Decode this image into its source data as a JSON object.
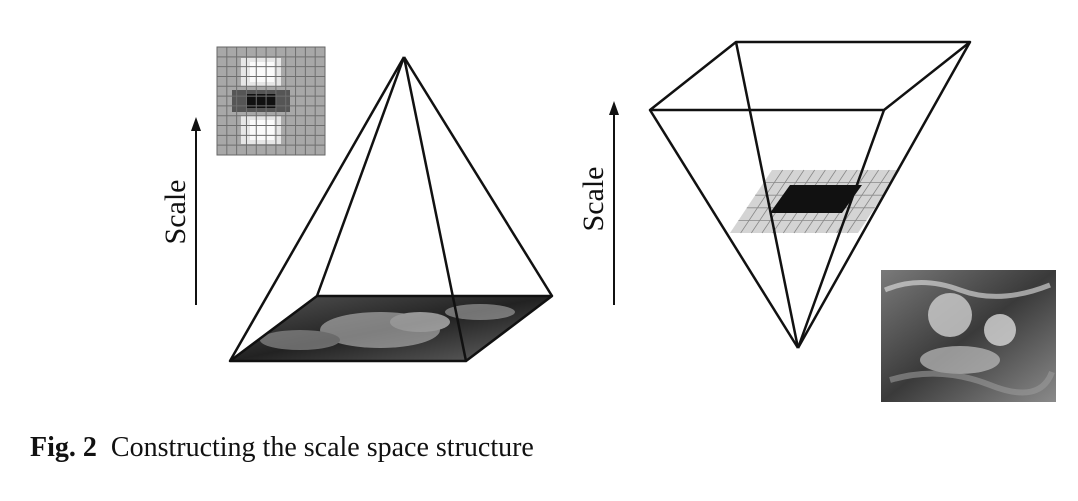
{
  "left_panel": {
    "axis_label": "Scale"
  },
  "right_panel": {
    "axis_label": "Scale"
  },
  "caption": {
    "figure_number": "Fig. 2",
    "text": "Constructing the scale space structure"
  },
  "colors": {
    "line": "#111111",
    "filter_dark": "#111111",
    "filter_light": "#f2f2f2",
    "filter_mid": "#9a9a9a"
  }
}
